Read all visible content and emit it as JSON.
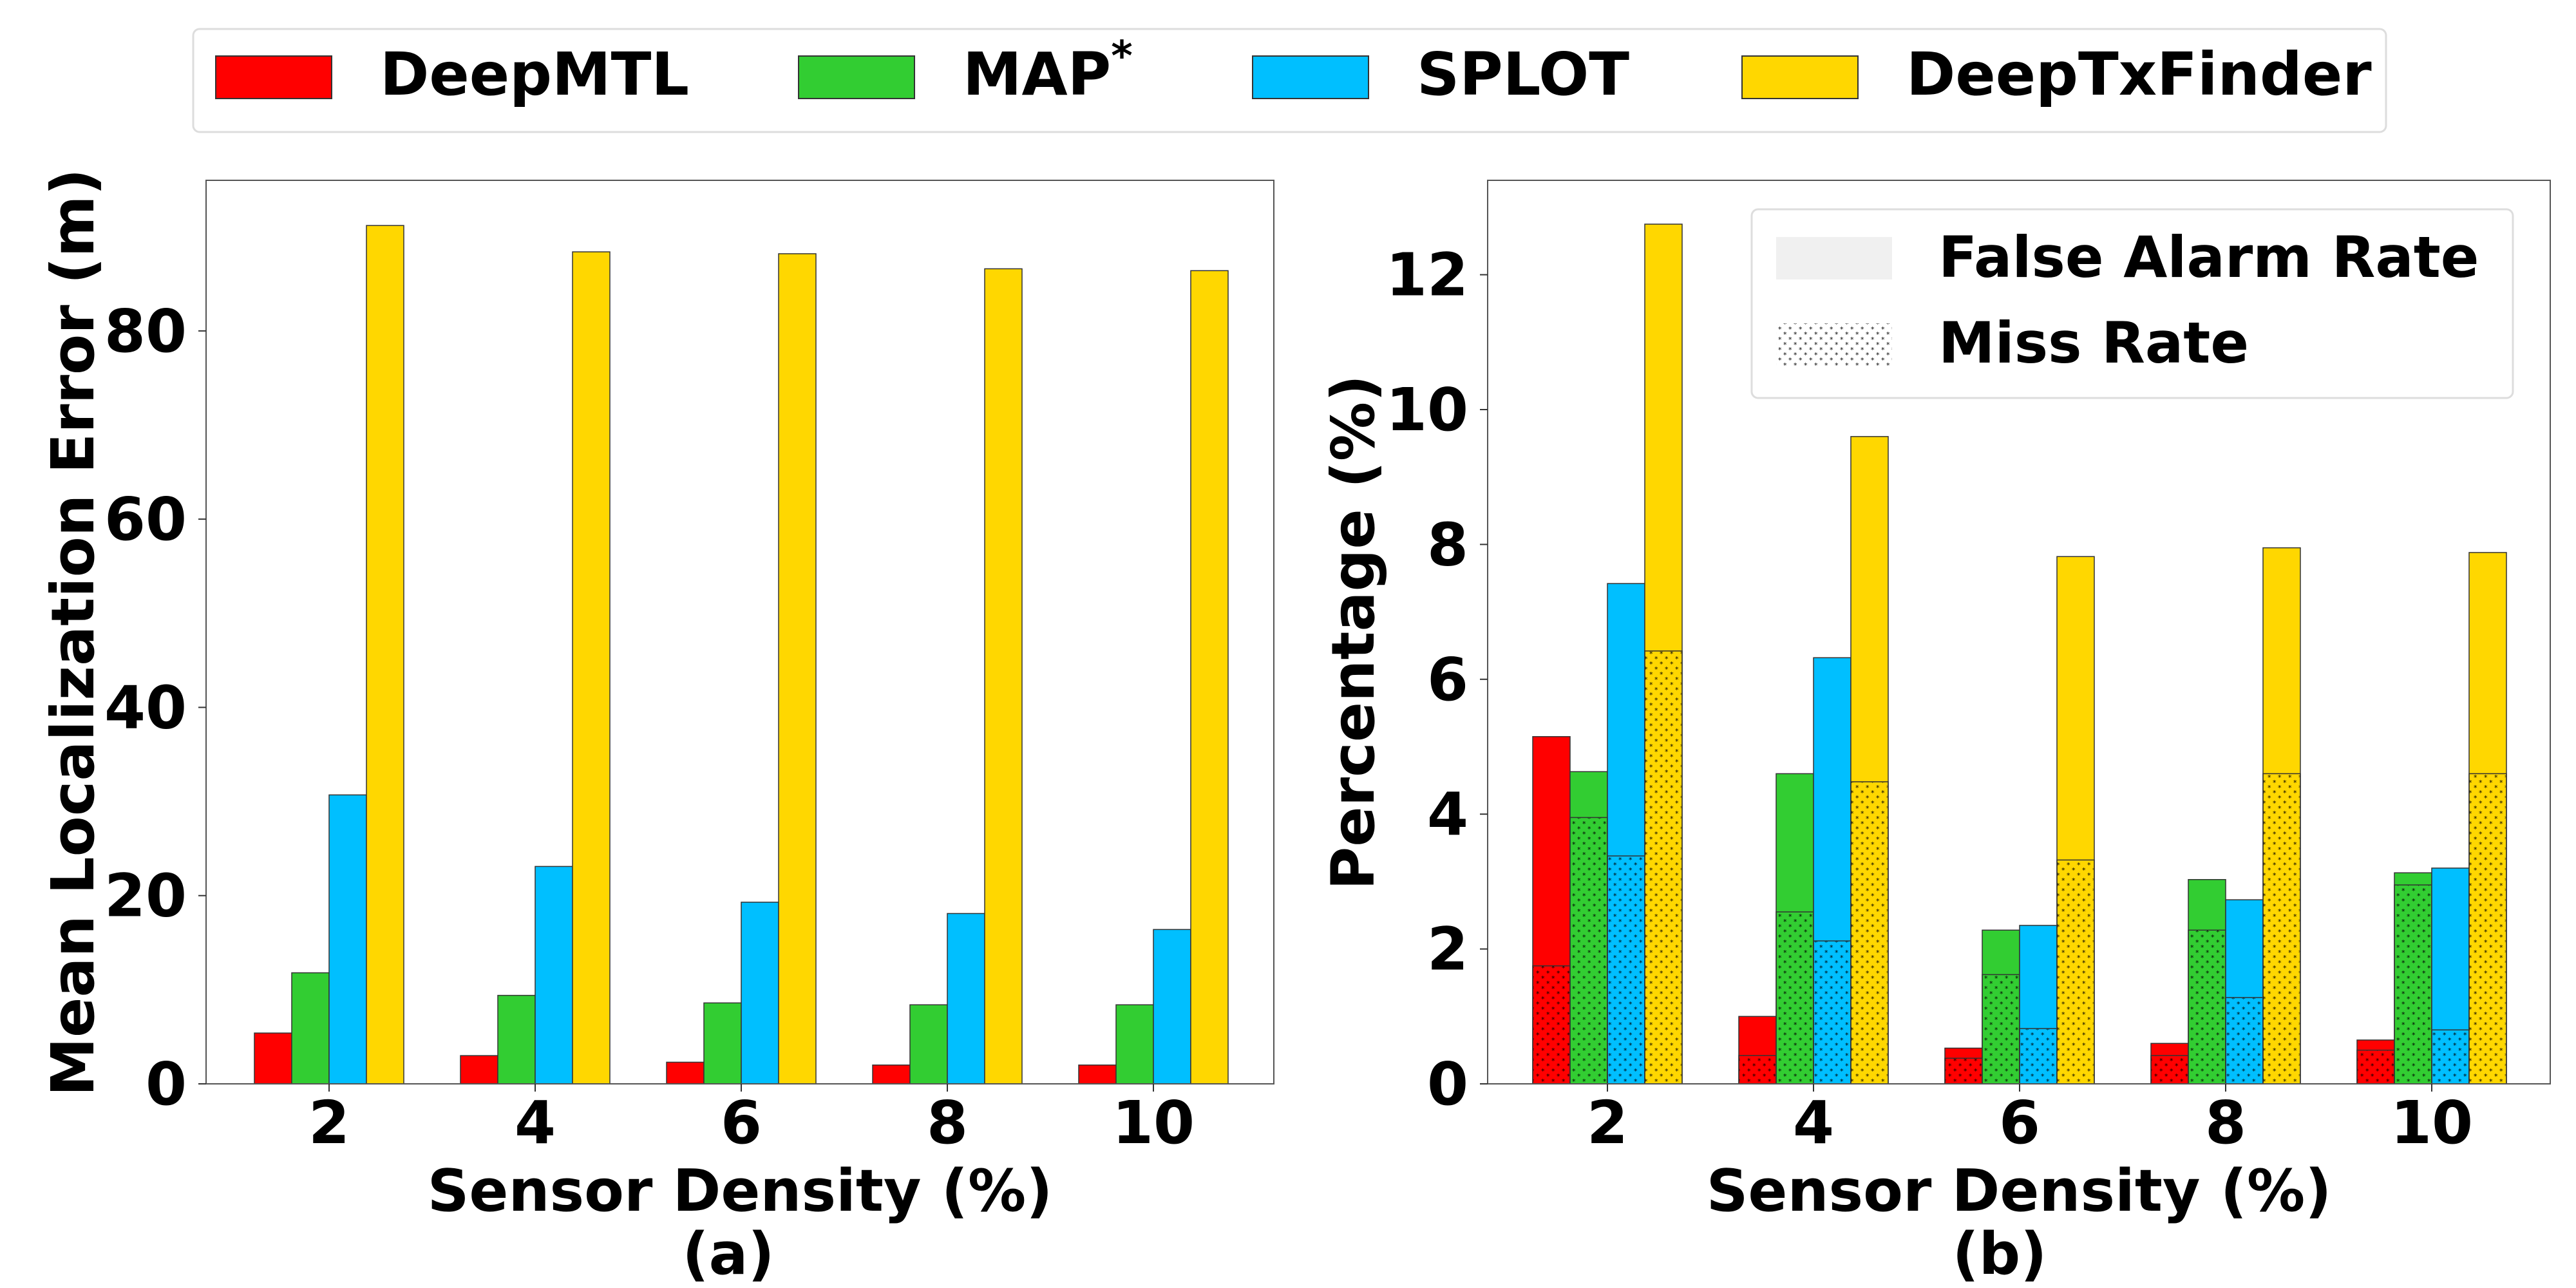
{
  "legend": {
    "series": [
      {
        "name": "DeepMTL",
        "color": "#ff0000"
      },
      {
        "name": "MAP",
        "sup": "*",
        "color": "#32cd32"
      },
      {
        "name": "SPLOT",
        "color": "#00bfff"
      },
      {
        "name": "DeepTxFinder",
        "color": "#ffd700"
      }
    ]
  },
  "chart_data": [
    {
      "type": "bar",
      "xlabel": "Sensor Density (%)",
      "ylabel": "Mean Localization Error (m)",
      "caption": "(a)",
      "categories": [
        "2",
        "4",
        "6",
        "8",
        "10"
      ],
      "ylim": [
        0,
        96
      ],
      "yticks": [
        0,
        20,
        40,
        60,
        80
      ],
      "series": [
        {
          "name": "DeepMTL",
          "values": [
            5.4,
            3.0,
            2.3,
            2.0,
            2.0
          ]
        },
        {
          "name": "MAP*",
          "values": [
            11.8,
            9.4,
            8.6,
            8.4,
            8.4
          ]
        },
        {
          "name": "SPLOT",
          "values": [
            30.7,
            23.1,
            19.3,
            18.1,
            16.4
          ]
        },
        {
          "name": "DeepTxFinder",
          "values": [
            91.2,
            88.4,
            88.2,
            86.6,
            86.4
          ]
        }
      ]
    },
    {
      "type": "bar",
      "xlabel": "Sensor Density (%)",
      "ylabel": "Percentage (%)",
      "caption": "(b)",
      "categories": [
        "2",
        "4",
        "6",
        "8",
        "10"
      ],
      "ylim": [
        0,
        13.4
      ],
      "yticks": [
        0,
        2,
        4,
        6,
        8,
        10,
        12
      ],
      "hatch_legend": [
        "False Alarm Rate",
        "Miss Rate"
      ],
      "stacked_series": [
        {
          "name": "DeepMTL",
          "miss": [
            1.75,
            0.42,
            0.38,
            0.42,
            0.5
          ],
          "total": [
            5.15,
            1.0,
            0.53,
            0.6,
            0.65
          ]
        },
        {
          "name": "MAP*",
          "miss": [
            3.95,
            2.55,
            1.62,
            2.28,
            2.95
          ],
          "total": [
            4.63,
            4.6,
            2.28,
            3.03,
            3.13
          ]
        },
        {
          "name": "SPLOT",
          "miss": [
            3.38,
            2.12,
            0.82,
            1.28,
            0.8
          ],
          "total": [
            7.42,
            6.32,
            2.35,
            2.73,
            3.2
          ]
        },
        {
          "name": "DeepTxFinder",
          "miss": [
            6.42,
            4.48,
            3.32,
            4.6,
            4.6
          ],
          "total": [
            12.75,
            9.6,
            7.82,
            7.95,
            7.88
          ]
        }
      ]
    }
  ]
}
